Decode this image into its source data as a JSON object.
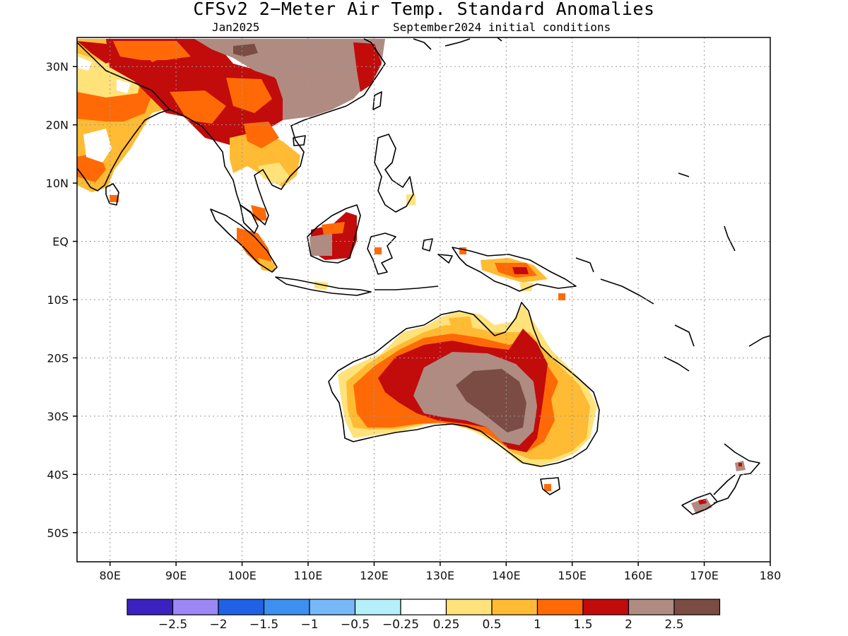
{
  "title": "CFSv2 2−Meter Air Temp. Standard Anomalies",
  "subtitle_left": "Jan2025",
  "subtitle_right": "September2024 initial conditions",
  "map": {
    "lon_min": 75,
    "lon_max": 180,
    "lat_min": -55,
    "lat_max": 35,
    "projection": "equirectangular",
    "gridlines": "dotted",
    "lat_ticks": [
      {
        "value": 30,
        "label": "30N"
      },
      {
        "value": 20,
        "label": "20N"
      },
      {
        "value": 10,
        "label": "10N"
      },
      {
        "value": 0,
        "label": "EQ"
      },
      {
        "value": -10,
        "label": "10S"
      },
      {
        "value": -20,
        "label": "20S"
      },
      {
        "value": -30,
        "label": "30S"
      },
      {
        "value": -40,
        "label": "40S"
      },
      {
        "value": -50,
        "label": "50S"
      }
    ],
    "lon_ticks": [
      {
        "value": 80,
        "label": "80E"
      },
      {
        "value": 90,
        "label": "90E"
      },
      {
        "value": 100,
        "label": "100E"
      },
      {
        "value": 110,
        "label": "110E"
      },
      {
        "value": 120,
        "label": "120E"
      },
      {
        "value": 130,
        "label": "130E"
      },
      {
        "value": 140,
        "label": "140E"
      },
      {
        "value": 150,
        "label": "150E"
      },
      {
        "value": 160,
        "label": "160E"
      },
      {
        "value": 170,
        "label": "170E"
      },
      {
        "value": 180,
        "label": "180"
      }
    ]
  },
  "colorbar": {
    "colors": [
      "#3b22c0",
      "#9b87f5",
      "#1f62e5",
      "#3b90f0",
      "#77b9f8",
      "#b4effa",
      "#ffffff",
      "#ffe27a",
      "#ffbb33",
      "#ff6a06",
      "#c20b0b",
      "#b08b82",
      "#7a4c43"
    ],
    "labels": [
      "−2.5",
      "−2",
      "−1.5",
      "−1",
      "−0.5",
      "−0.25",
      "0.25",
      "0.5",
      "1",
      "1.5",
      "2",
      "2.5"
    ]
  }
}
